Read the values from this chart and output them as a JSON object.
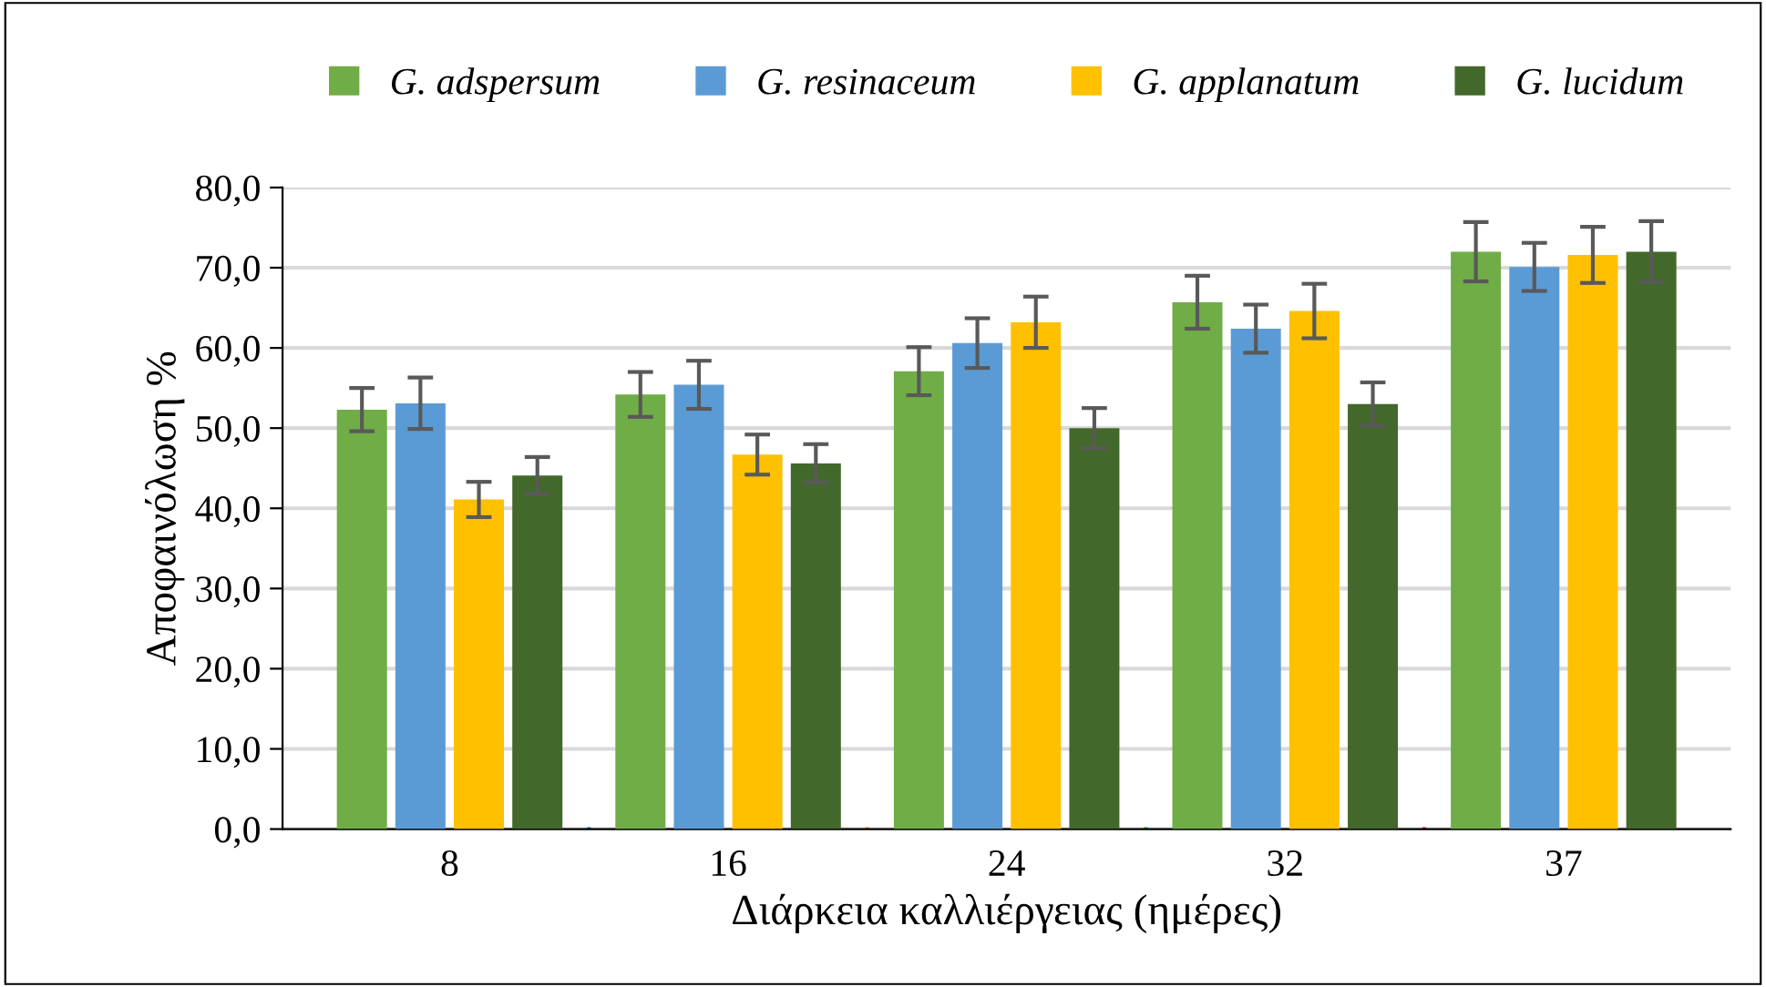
{
  "chart_data": {
    "type": "bar",
    "xlabel": "Διάρκεια καλλιέργειας (ημέρες)",
    "ylabel": "Αποφαινόλωση %",
    "categories": [
      "8",
      "16",
      "24",
      "32",
      "37"
    ],
    "series": [
      {
        "name": "G. adspersum",
        "color": "#70ad47",
        "values": [
          52.3,
          54.2,
          57.1,
          65.7,
          72.0
        ],
        "errors": [
          2.7,
          2.8,
          3.0,
          3.3,
          3.7
        ]
      },
      {
        "name": "G. resinaceum",
        "color": "#5b9bd5",
        "values": [
          53.1,
          55.4,
          60.6,
          62.4,
          70.1
        ],
        "errors": [
          3.2,
          3.0,
          3.1,
          3.0,
          3.0
        ]
      },
      {
        "name": "G. applanatum",
        "color": "#ffc000",
        "values": [
          41.1,
          46.7,
          63.2,
          64.6,
          71.6
        ],
        "errors": [
          2.2,
          2.5,
          3.2,
          3.4,
          3.5
        ]
      },
      {
        "name": "G. lucidum",
        "color": "#43682b",
        "values": [
          44.1,
          45.6,
          50.0,
          53.0,
          72.0
        ],
        "errors": [
          2.3,
          2.4,
          2.5,
          2.7,
          3.8
        ]
      }
    ],
    "ylim": [
      0,
      80
    ],
    "yticks": [
      {
        "value": 0,
        "label": "0,0"
      },
      {
        "value": 10,
        "label": "10,0"
      },
      {
        "value": 20,
        "label": "20,0"
      },
      {
        "value": 30,
        "label": "30,0"
      },
      {
        "value": 40,
        "label": "40,0"
      },
      {
        "value": 50,
        "label": "50,0"
      },
      {
        "value": 60,
        "label": "60,0"
      },
      {
        "value": 70,
        "label": "70,0"
      },
      {
        "value": 80,
        "label": "80,0"
      }
    ],
    "grid": "y",
    "legend": "top"
  }
}
